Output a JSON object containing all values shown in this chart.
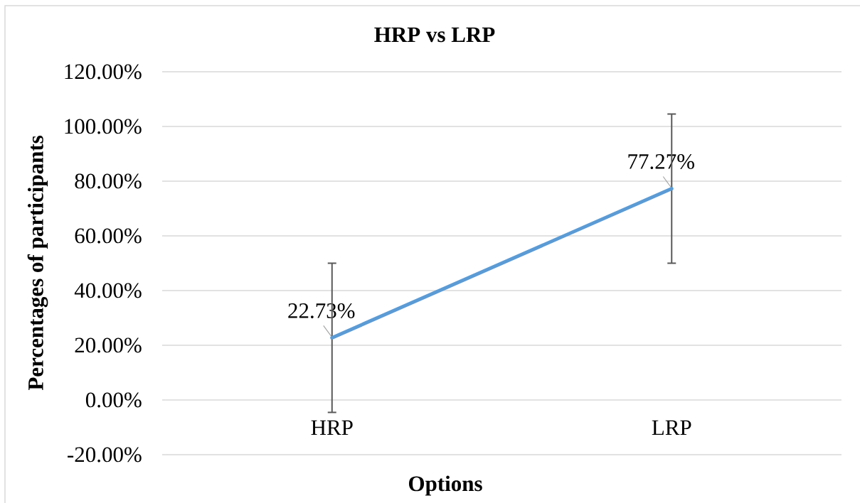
{
  "chart_data": {
    "type": "line",
    "title": "HRP vs LRP",
    "xlabel": "Options",
    "ylabel": "Percentages of participants",
    "categories": [
      "HRP",
      "LRP"
    ],
    "values": [
      22.73,
      77.27
    ],
    "color": "#5b9bd5",
    "errors": [
      27.27,
      27.27
    ],
    "value_labels": [
      "22.73%",
      "77.27%"
    ],
    "ylim": [
      -20,
      120
    ],
    "yticks": [
      {
        "value": -20,
        "label": "-20.00%"
      },
      {
        "value": 0,
        "label": "0.00%"
      },
      {
        "value": 20,
        "label": "20.00%"
      },
      {
        "value": 40,
        "label": "40.00%"
      },
      {
        "value": 60,
        "label": "60.00%"
      },
      {
        "value": 80,
        "label": "80.00%"
      },
      {
        "value": 100,
        "label": "100.00%"
      },
      {
        "value": 120,
        "label": "120.00%"
      }
    ],
    "grid": "y",
    "marker": "none",
    "line_style": "solid"
  }
}
